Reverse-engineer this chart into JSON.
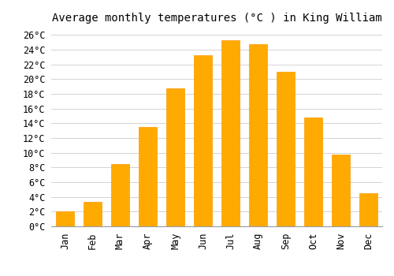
{
  "title": "Average monthly temperatures (°C ) in King William",
  "months": [
    "Jan",
    "Feb",
    "Mar",
    "Apr",
    "May",
    "Jun",
    "Jul",
    "Aug",
    "Sep",
    "Oct",
    "Nov",
    "Dec"
  ],
  "values": [
    2.0,
    3.3,
    8.5,
    13.5,
    18.7,
    23.2,
    25.3,
    24.8,
    21.0,
    14.8,
    9.7,
    4.5
  ],
  "bar_color": "#FFAA00",
  "bar_edge_color": "#FF9900",
  "ylim": [
    0,
    27
  ],
  "yticks": [
    0,
    2,
    4,
    6,
    8,
    10,
    12,
    14,
    16,
    18,
    20,
    22,
    24,
    26
  ],
  "background_color": "#ffffff",
  "grid_color": "#cccccc",
  "title_fontsize": 10,
  "tick_fontsize": 8.5,
  "bar_width": 0.65
}
